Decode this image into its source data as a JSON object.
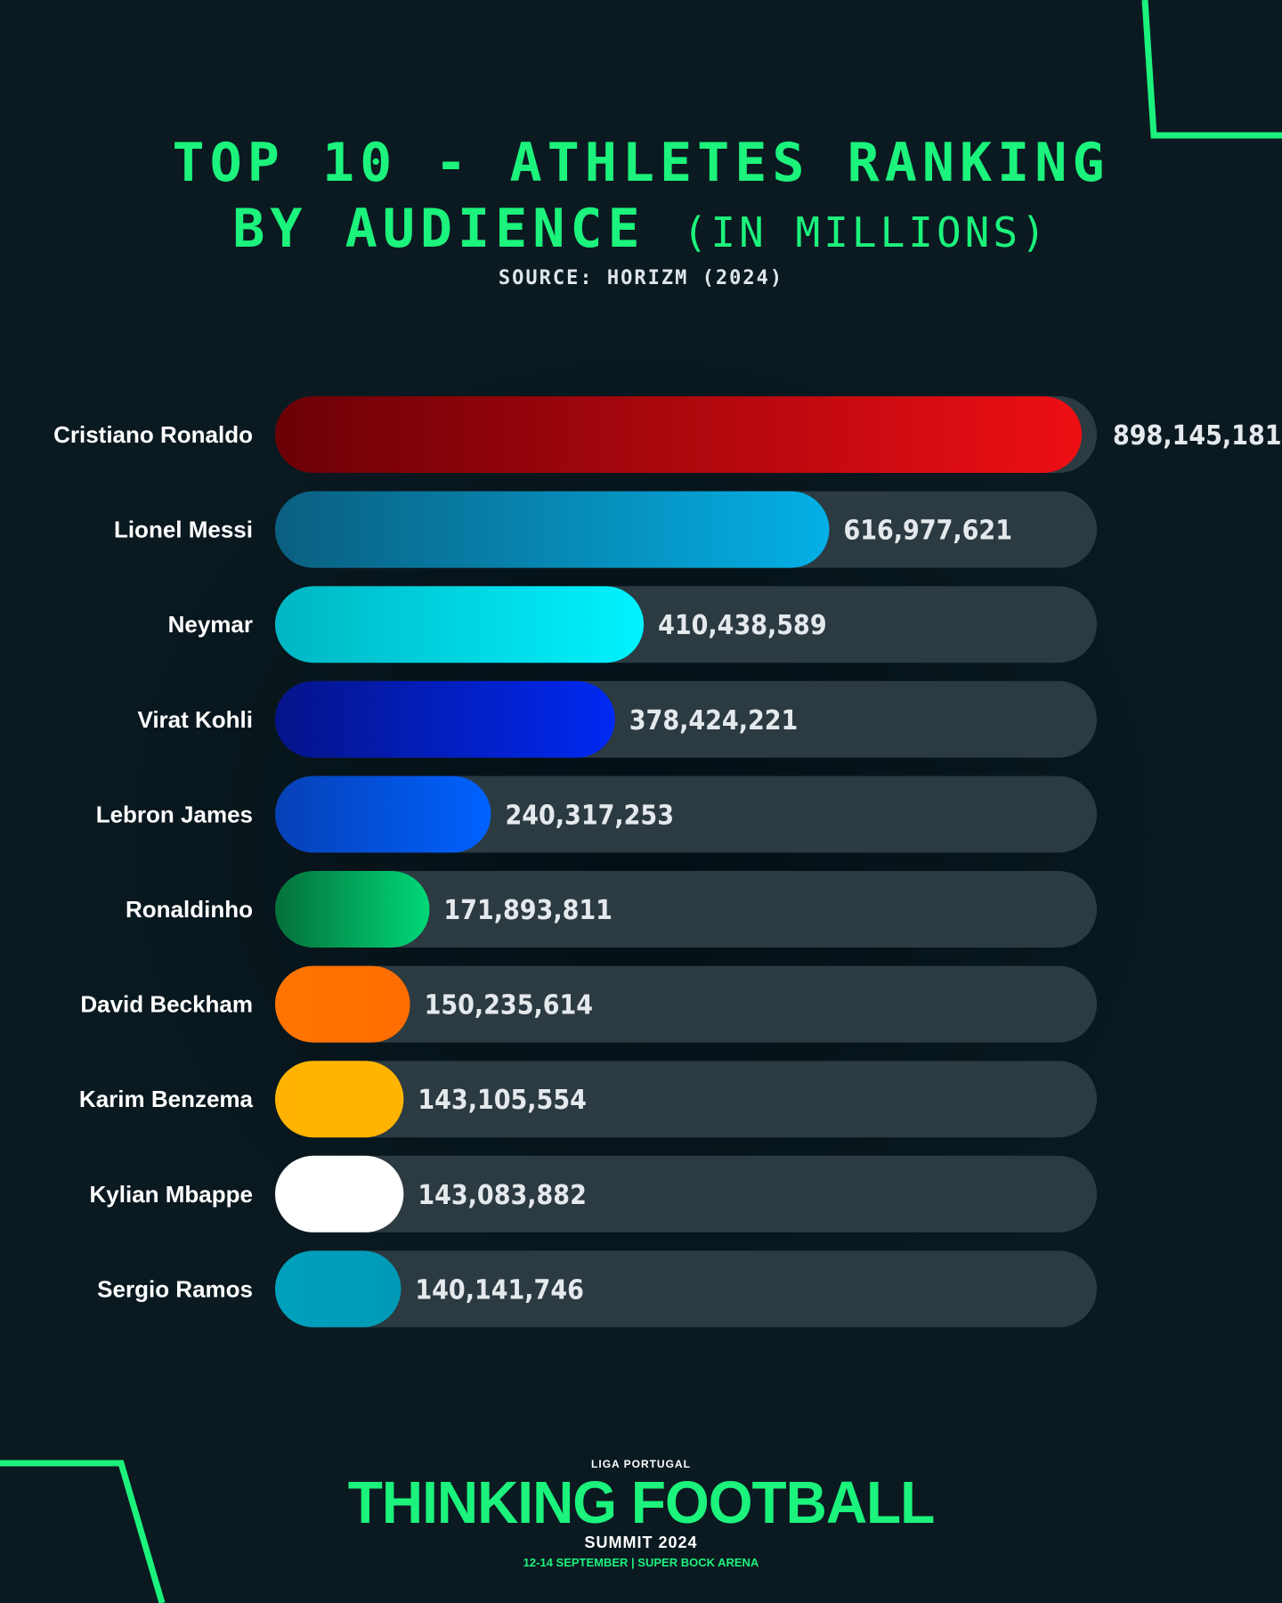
{
  "header": {
    "title_line1": "TOP 10 - ATHLETES RANKING",
    "title_line2_main": "BY AUDIENCE",
    "title_line2_paren": "(IN MILLIONS)",
    "source": "SOURCE: HORIZM (2024)"
  },
  "footer": {
    "liga": "LIGA PORTUGAL",
    "name": "THINKING FOOTBALL",
    "summit": "SUMMIT 2024",
    "dates": "12-14 SEPTEMBER | SUPER BOCK ARENA"
  },
  "colors": {
    "accent": "#1cf37c",
    "background": "#0b1a21",
    "track": "#2c3a42"
  },
  "chart_data": {
    "type": "bar",
    "orientation": "horizontal",
    "title": "TOP 10 - ATHLETES RANKING BY AUDIENCE (IN MILLIONS)",
    "xlabel": "",
    "ylabel": "",
    "xlim": [
      0,
      900000000
    ],
    "grid": false,
    "legend": "none",
    "categories": [
      "Cristiano Ronaldo",
      "Lionel Messi",
      "Neymar",
      "Virat Kohli",
      "Lebron James",
      "Ronaldinho",
      "David Beckham",
      "Karim Benzema",
      "Kylian Mbappe",
      "Sergio Ramos"
    ],
    "values": [
      898145181,
      616977621,
      410438589,
      378424221,
      240317253,
      171893811,
      150235614,
      143105554,
      143083882,
      140141746
    ],
    "value_labels": [
      "898,145,181",
      "616,977,621",
      "410,438,589",
      "378,424,221",
      "240,317,253",
      "171,893,811",
      "150,235,614",
      "143,105,554",
      "143,083,882",
      "140,141,746"
    ],
    "bar_colors": [
      [
        "#6a0006",
        "#ee0f14"
      ],
      [
        "#0a5f80",
        "#04b0e6"
      ],
      [
        "#00b6c3",
        "#00f3ff"
      ],
      [
        "#05148a",
        "#0029f2"
      ],
      [
        "#0640b6",
        "#0062ff"
      ],
      [
        "#05703a",
        "#00d878"
      ],
      [
        "#ff7500",
        "#ff6d00"
      ],
      [
        "#ffb300",
        "#ffb500"
      ],
      [
        "#ffffff",
        "#ffffff"
      ],
      [
        "#00a0bd",
        "#009ab6"
      ]
    ]
  }
}
